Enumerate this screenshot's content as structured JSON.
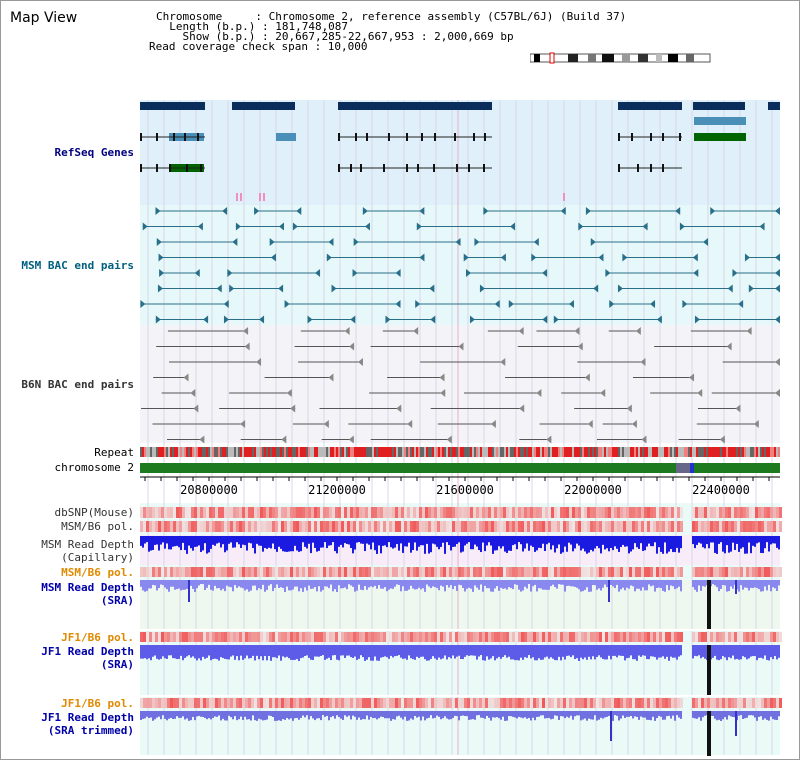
{
  "header": {
    "title": "Map View",
    "info_lines": [
      "Chromosome     : Chromosome 2, reference assembly (C57BL/6J) (Build 37)",
      "  Length (b.p.) : 181,748,087",
      "    Show (b.p.) : 20,667,285-22,667,953 : 2,000,669 bp",
      "Read coverage check span : 10,000"
    ]
  },
  "tracks": {
    "refseq": "RefSeq Genes",
    "msm_bac": "MSM BAC end pairs",
    "b6n_bac": "B6N BAC end pairs",
    "repeat": "Repeat",
    "chromosome": "chromosome 2",
    "dbsnp": "dbSNP(Mouse)",
    "msm_b6_pol_1": "MSM/B6 pol.",
    "msm_read_depth_cap": "MSM Read Depth\n(Capillary)",
    "msm_b6_pol_2": "MSM/B6 pol.",
    "msm_read_depth_sra": "MSM Read Depth\n(SRA)",
    "jf1_b6_pol_1": "JF1/B6 pol.",
    "jf1_read_depth_sra": "JF1 Read Depth\n(SRA)",
    "jf1_b6_pol_2": "JF1/B6 pol.",
    "jf1_read_depth_trim": "JF1 Read Depth\n(SRA trimmed)"
  },
  "axis": {
    "ticks": [
      "20800000",
      "21200000",
      "21600000",
      "22000000",
      "22400000"
    ]
  },
  "colors": {
    "refseq_bg": "#dff0fa",
    "msm_bac_bg": "#e6f8fa",
    "b6n_bac_bg": "#f4f4f8",
    "chrom_green": "#1e7a1e",
    "gene_navy": "#0b2d5c",
    "gene_lightblue": "#4a8fb8",
    "gene_green": "#006400",
    "bac_teal": "#2a6f8a",
    "bac_gray": "#555555",
    "depth_blue": "#3333dd",
    "depth_light": "#8888ee"
  }
}
